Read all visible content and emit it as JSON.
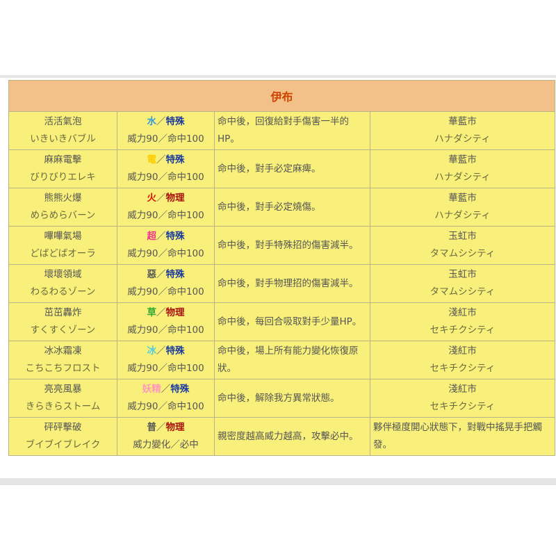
{
  "title": "伊布",
  "colors": {
    "header_bg": "#f4c08a",
    "cell_bg": "#f8f07a",
    "special": "#1a3aa0",
    "physical": "#aa1111"
  },
  "moves": [
    {
      "name_zh": "活活氣泡",
      "name_jp": "いきいきバブル",
      "type": "水",
      "type_color": "#3399dd",
      "category": "特殊",
      "cat_class": "special",
      "stats": "威力90／命中100",
      "effect": "命中後，回復給對手傷害一半的HP。",
      "location_zh": "華藍市",
      "location_jp": "ハナダシティ"
    },
    {
      "name_zh": "麻麻電擊",
      "name_jp": "びりびりエレキ",
      "type": "電",
      "type_color": "#ffcc00",
      "category": "特殊",
      "cat_class": "special",
      "stats": "威力90／命中100",
      "effect": "命中後，對手必定麻痺。",
      "location_zh": "華藍市",
      "location_jp": "ハナダシティ"
    },
    {
      "name_zh": "熊熊火爆",
      "name_jp": "めらめらバーン",
      "type": "火",
      "type_color": "#dd1100",
      "category": "物理",
      "cat_class": "physical",
      "stats": "威力90／命中100",
      "effect": "命中後，對手必定燒傷。",
      "location_zh": "華藍市",
      "location_jp": "ハナダシティ"
    },
    {
      "name_zh": "嗶嗶氣場",
      "name_jp": "どばどばオーラ",
      "type": "超",
      "type_color": "#ee3388",
      "category": "特殊",
      "cat_class": "special",
      "stats": "威力90／命中100",
      "effect": "命中後，對手特殊招的傷害減半。",
      "location_zh": "玉虹市",
      "location_jp": "タマムシシティ"
    },
    {
      "name_zh": "壞壞領域",
      "name_jp": "わるわるゾーン",
      "type": "惡",
      "type_color": "#555555",
      "category": "特殊",
      "cat_class": "special",
      "stats": "威力90／命中100",
      "effect": "命中後，對手物理招的傷害減半。",
      "location_zh": "玉虹市",
      "location_jp": "タマムシシティ"
    },
    {
      "name_zh": "茁茁轟炸",
      "name_jp": "すくすくゾーン",
      "type": "草",
      "type_color": "#33aa33",
      "category": "物理",
      "cat_class": "physical",
      "stats": "威力90／命中100",
      "effect": "命中後，每回合吸取對手少量HP。",
      "location_zh": "淺紅市",
      "location_jp": "セキチクシティ"
    },
    {
      "name_zh": "冰冰霜凍",
      "name_jp": "こちこちフロスト",
      "type": "冰",
      "type_color": "#55ccdd",
      "category": "特殊",
      "cat_class": "special",
      "stats": "威力90／命中100",
      "effect": "命中後，場上所有能力變化恢復原狀。",
      "location_zh": "淺紅市",
      "location_jp": "セキチクシティ"
    },
    {
      "name_zh": "亮亮風暴",
      "name_jp": "きらきらストーム",
      "type": "妖精",
      "type_color": "#ff99bb",
      "category": "特殊",
      "cat_class": "special",
      "stats": "威力90／命中100",
      "effect": "命中後，解除我方異常狀態。",
      "location_zh": "淺紅市",
      "location_jp": "セキチクシティ"
    },
    {
      "name_zh": "砰砰擊破",
      "name_jp": "ブイブイブレイク",
      "type": "普",
      "type_color": "#555555",
      "category": "物理",
      "cat_class": "physical",
      "stats": "威力變化／必中",
      "effect": "親密度越高威力越高，攻擊必中。",
      "location_zh": "夥伴極度開心狀態下，對戰中搖晃手把觸發。",
      "location_jp": ""
    }
  ]
}
